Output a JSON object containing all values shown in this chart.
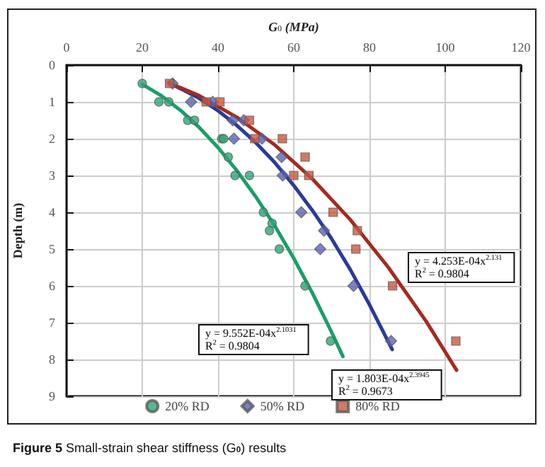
{
  "chart_data": {
    "type": "scatter",
    "title": "Figure 5 Small-strain shear stiffness (G$_{0}$) results",
    "xlabel": "G$_{0}$ (MPa)",
    "ylabel": "Depth (m)",
    "xlim": [
      0,
      120
    ],
    "xticks": [
      0,
      20,
      40,
      60,
      80,
      100,
      120
    ],
    "ylim": [
      9,
      0
    ],
    "yticks": [
      0,
      1,
      2,
      3,
      4,
      5,
      6,
      7,
      8,
      9
    ],
    "grid": true,
    "legend": "bottom",
    "annotations": [
      "y = 9.552E-04x$^{2.1031}$\nR$^{2}$ = 0.9804",
      "y = 1.803E-04x$^{2.3945}$\nR$^{2}$ = 0.9673",
      "y = 4.253E-04x$^{2.131}$\nR$^{2}$ = 0.9804"
    ],
    "series": [
      {
        "name": "20% RD",
        "marker": "circle",
        "color": "#2aa876",
        "x": [
          20,
          24.4,
          27,
          32,
          33.8,
          41,
          41.5,
          42.7,
          44.5,
          48.3,
          52,
          54.3,
          53.6,
          56.2,
          63,
          69.7
        ],
        "values": [
          0.5,
          1,
          1,
          1.5,
          1.5,
          2,
          2,
          2.5,
          3,
          3,
          4,
          4.3,
          4.5,
          5,
          6,
          7.5
        ]
      },
      {
        "name": "50% RD",
        "marker": "diamond",
        "color": "#5b63b8",
        "x": [
          28,
          32.9,
          38.6,
          43.9,
          46.8,
          44.2,
          51.6,
          56.8,
          57.1,
          62,
          68,
          67,
          75.8,
          85.7
        ],
        "values": [
          0.5,
          1,
          1,
          1.5,
          1.5,
          2,
          2,
          2.5,
          3,
          4,
          4.5,
          5,
          6,
          7.5
        ]
      },
      {
        "name": "80% RD",
        "marker": "square",
        "color": "#c9573f",
        "x": [
          27.2,
          36.9,
          40.5,
          48.3,
          49.7,
          57,
          63,
          60,
          64,
          70.4,
          76.8,
          76.4,
          86.1,
          102.8
        ],
        "values": [
          0.5,
          1,
          1,
          1.5,
          2,
          2,
          2.5,
          3,
          3,
          4,
          4.5,
          5,
          6,
          7.5
        ]
      },
      {
        "type": "line",
        "marker": "none",
        "color": "#1a9e68",
        "x": [
          20,
          25,
          30,
          35,
          40,
          45,
          50,
          55,
          60,
          65,
          70,
          73
        ],
        "values": [
          0.52,
          0.83,
          1.22,
          1.69,
          2.24,
          2.87,
          3.58,
          4.37,
          5.25,
          6.21,
          7.26,
          7.92
        ]
      },
      {
        "type": "line",
        "marker": "none",
        "color": "#2a3a9c",
        "x": [
          28,
          35,
          40,
          45,
          50,
          55,
          60,
          65,
          70,
          75,
          80,
          86
        ],
        "values": [
          0.53,
          0.9,
          1.24,
          1.64,
          2.11,
          2.65,
          3.27,
          3.96,
          4.72,
          5.57,
          6.51,
          7.73
        ]
      },
      {
        "type": "line",
        "marker": "none",
        "color": "#a52a1f",
        "x": [
          27,
          35,
          45,
          55,
          65,
          75,
          85,
          95,
          103
        ],
        "values": [
          0.48,
          0.83,
          1.42,
          2.17,
          3.1,
          4.21,
          5.5,
          6.97,
          8.29
        ]
      }
    ]
  }
}
